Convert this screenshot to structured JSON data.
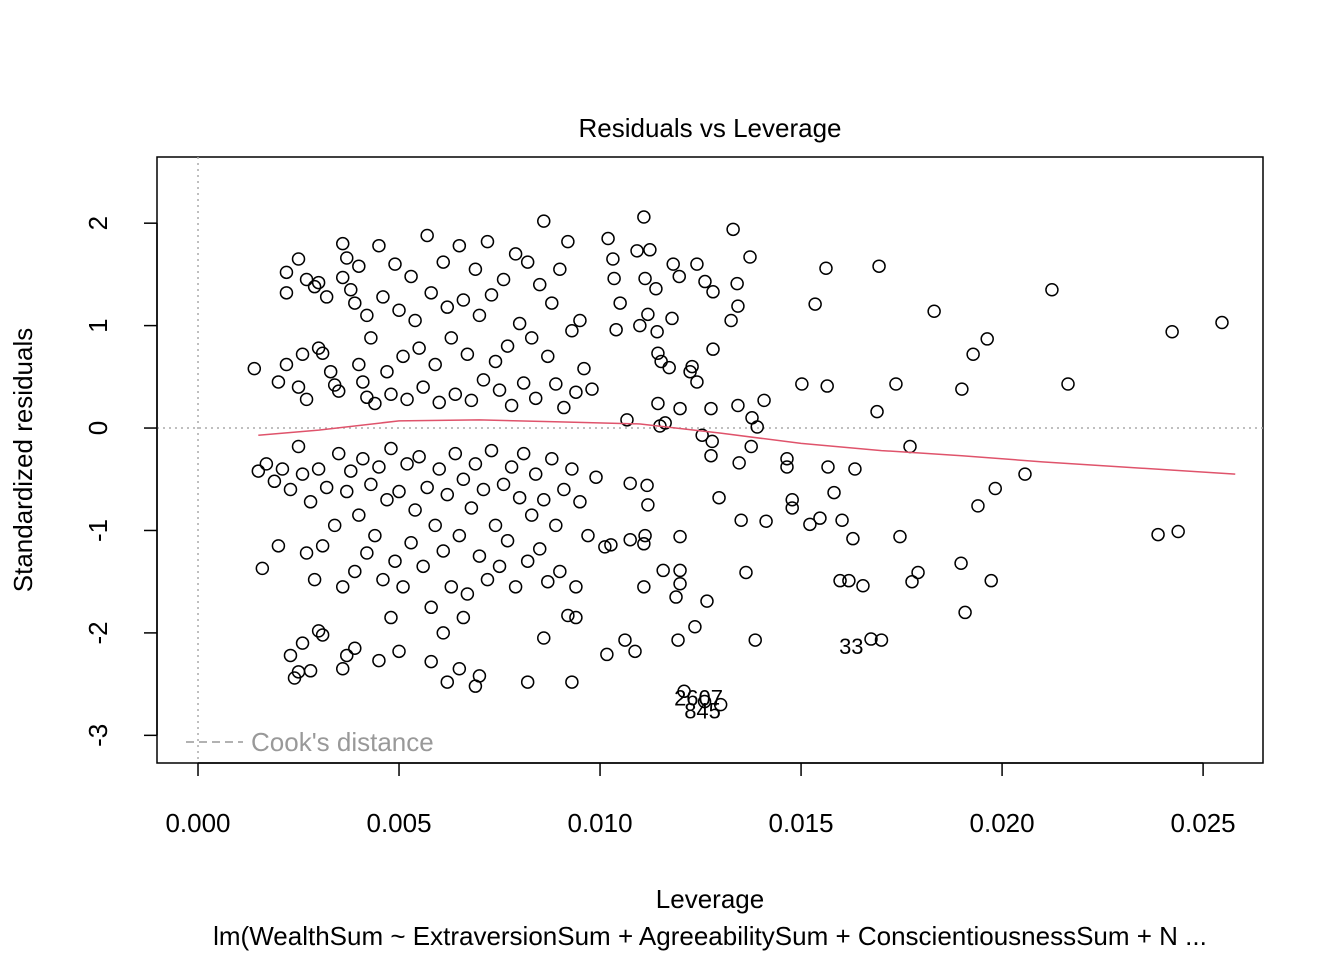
{
  "chart_data": {
    "type": "scatter",
    "title": "Residuals vs Leverage",
    "x_label": "Leverage",
    "y_label": "Standardized residuals",
    "subtitle": "lm(WealthSum ~ ExtraversionSum + AgreeabilitySum + ConscientiousnessSum + N ...",
    "xlim": [
      -0.00102,
      0.02649
    ],
    "ylim": [
      -3.27,
      2.646
    ],
    "xticks": [
      {
        "value": 0,
        "label": "0.000"
      },
      {
        "value": 0.005,
        "label": "0.005"
      },
      {
        "value": 0.01,
        "label": "0.010"
      },
      {
        "value": 0.015,
        "label": "0.015"
      },
      {
        "value": 0.02,
        "label": "0.020"
      },
      {
        "value": 0.025,
        "label": "0.025"
      }
    ],
    "yticks": [
      -3,
      -2,
      -1,
      0,
      1,
      2
    ],
    "point_color": "#000000",
    "points": [
      [
        0.02547,
        1.03
      ],
      [
        0.02423,
        0.94
      ],
      [
        0.02388,
        -1.04
      ],
      [
        0.02438,
        -1.01
      ],
      [
        0.02124,
        1.35
      ],
      [
        0.02164,
        0.43
      ],
      [
        0.02057,
        -0.45
      ],
      [
        0.01983,
        -0.59
      ],
      [
        0.01973,
        -1.49
      ],
      [
        0.01963,
        0.87
      ],
      [
        0.01928,
        0.72
      ],
      [
        0.019,
        0.38
      ],
      [
        0.01898,
        -1.32
      ],
      [
        0.01908,
        -1.8
      ],
      [
        0.0194,
        -0.76
      ],
      [
        0.01831,
        1.14
      ],
      [
        0.01791,
        -1.41
      ],
      [
        0.01776,
        -1.5
      ],
      [
        0.01771,
        -0.18
      ],
      [
        0.01746,
        -1.06
      ],
      [
        0.01736,
        0.43
      ],
      [
        0.01694,
        1.58
      ],
      [
        0.01689,
        0.16
      ],
      [
        0.01674,
        -2.06
      ],
      [
        0.01634,
        -0.4
      ],
      [
        0.01629,
        -1.08
      ],
      [
        0.01654,
        -1.54
      ],
      [
        0.01619,
        -1.49
      ],
      [
        0.01597,
        -1.49
      ],
      [
        0.01602,
        -0.9
      ],
      [
        0.01582,
        -0.63
      ],
      [
        0.01562,
        1.56
      ],
      [
        0.01565,
        0.41
      ],
      [
        0.01567,
        -0.38
      ],
      [
        0.01535,
        1.21
      ],
      [
        0.01547,
        -0.88
      ],
      [
        0.01522,
        -0.94
      ],
      [
        0.01502,
        0.43
      ],
      [
        0.01478,
        -0.7
      ],
      [
        0.01478,
        -0.78
      ],
      [
        0.01465,
        -0.3
      ],
      [
        0.01465,
        -0.38
      ],
      [
        0.01413,
        -0.91
      ],
      [
        0.01408,
        0.27
      ],
      [
        0.01386,
        -2.07
      ],
      [
        0.01373,
        1.67
      ],
      [
        0.01363,
        -1.41
      ],
      [
        0.01351,
        -0.9
      ],
      [
        0.01343,
        0.22
      ],
      [
        0.01343,
        1.19
      ],
      [
        0.01341,
        1.41
      ],
      [
        0.01331,
        1.94
      ],
      [
        0.01326,
        1.05
      ],
      [
        0.01346,
        -0.34
      ],
      [
        0.01378,
        0.1
      ],
      [
        0.01391,
        0.01
      ],
      [
        0.01376,
        -0.18
      ],
      [
        0.01281,
        1.33
      ],
      [
        0.01281,
        0.77
      ],
      [
        0.01276,
        0.19
      ],
      [
        0.01279,
        -0.13
      ],
      [
        0.01276,
        -0.27
      ],
      [
        0.01261,
        1.43
      ],
      [
        0.01254,
        -0.07
      ],
      [
        0.01266,
        -1.69
      ],
      [
        0.01296,
        -0.68
      ],
      [
        0.01241,
        0.45
      ],
      [
        0.01229,
        0.6
      ],
      [
        0.01224,
        0.55
      ],
      [
        0.01236,
        -1.94
      ],
      [
        0.01241,
        1.6
      ],
      [
        0.01182,
        1.6
      ],
      [
        0.01209,
        -2.57
      ],
      [
        0.01199,
        -1.06
      ],
      [
        0.01199,
        -1.39
      ],
      [
        0.01199,
        0.19
      ],
      [
        0.01189,
        -1.65
      ],
      [
        0.01199,
        -1.52
      ],
      [
        0.01197,
        1.48
      ],
      [
        0.01194,
        -2.07
      ],
      [
        0.01179,
        1.07
      ],
      [
        0.01172,
        0.59
      ],
      [
        0.01162,
        0.05
      ],
      [
        0.01149,
        0.02
      ],
      [
        0.01152,
        0.65
      ],
      [
        0.01144,
        0.73
      ],
      [
        0.01144,
        0.24
      ],
      [
        0.01142,
        0.94
      ],
      [
        0.01139,
        1.36
      ],
      [
        0.01124,
        1.74
      ],
      [
        0.01109,
        2.06
      ],
      [
        0.01112,
        1.46
      ],
      [
        0.01092,
        1.73
      ],
      [
        0.01119,
        1.11
      ],
      [
        0.01117,
        -0.56
      ],
      [
        0.01119,
        -0.75
      ],
      [
        0.01112,
        -1.05
      ],
      [
        0.01109,
        -1.13
      ],
      [
        0.01109,
        -1.55
      ],
      [
        0.01157,
        -1.39
      ],
      [
        0.01099,
        1.0
      ],
      [
        0.01087,
        -2.18
      ],
      [
        0.01075,
        -0.54
      ],
      [
        0.01075,
        -1.09
      ],
      [
        0.01067,
        0.08
      ],
      [
        0.01062,
        -2.07
      ],
      [
        0.0105,
        1.22
      ],
      [
        0.0104,
        0.96
      ],
      [
        0.01035,
        1.46
      ],
      [
        0.01032,
        1.65
      ],
      [
        0.0102,
        1.85
      ],
      [
        0.01012,
        -1.16
      ],
      [
        0.01017,
        -2.21
      ],
      [
        0.01027,
        -1.14
      ],
      [
        0.0014,
        0.58
      ],
      [
        0.002,
        0.45
      ],
      [
        0.0022,
        0.62
      ],
      [
        0.0025,
        0.4
      ],
      [
        0.0026,
        0.72
      ],
      [
        0.0027,
        0.28
      ],
      [
        0.0022,
        1.52
      ],
      [
        0.0022,
        1.32
      ],
      [
        0.0025,
        1.65
      ],
      [
        0.0027,
        1.45
      ],
      [
        0.0029,
        1.38
      ],
      [
        0.003,
        1.42
      ],
      [
        0.0032,
        1.28
      ],
      [
        0.003,
        0.78
      ],
      [
        0.0031,
        0.73
      ],
      [
        0.0033,
        0.55
      ],
      [
        0.0034,
        0.42
      ],
      [
        0.0035,
        0.36
      ],
      [
        0.0036,
        1.47
      ],
      [
        0.0036,
        1.8
      ],
      [
        0.0037,
        1.66
      ],
      [
        0.0038,
        1.35
      ],
      [
        0.0039,
        1.22
      ],
      [
        0.004,
        0.62
      ],
      [
        0.0041,
        0.45
      ],
      [
        0.0042,
        0.3
      ],
      [
        0.004,
        1.58
      ],
      [
        0.0042,
        1.1
      ],
      [
        0.0043,
        0.88
      ],
      [
        0.0044,
        0.24
      ],
      [
        0.0045,
        1.78
      ],
      [
        0.0046,
        1.28
      ],
      [
        0.0047,
        0.55
      ],
      [
        0.0048,
        0.33
      ],
      [
        0.0049,
        1.6
      ],
      [
        0.005,
        1.15
      ],
      [
        0.0051,
        0.7
      ],
      [
        0.0052,
        0.28
      ],
      [
        0.0053,
        1.48
      ],
      [
        0.0054,
        1.05
      ],
      [
        0.0055,
        0.78
      ],
      [
        0.0056,
        0.4
      ],
      [
        0.0057,
        1.88
      ],
      [
        0.0058,
        1.32
      ],
      [
        0.0059,
        0.62
      ],
      [
        0.006,
        0.25
      ],
      [
        0.0061,
        1.62
      ],
      [
        0.0062,
        1.18
      ],
      [
        0.0063,
        0.88
      ],
      [
        0.0064,
        0.33
      ],
      [
        0.0065,
        1.78
      ],
      [
        0.0066,
        1.25
      ],
      [
        0.0067,
        0.72
      ],
      [
        0.0068,
        0.27
      ],
      [
        0.0069,
        1.55
      ],
      [
        0.007,
        1.1
      ],
      [
        0.0071,
        0.47
      ],
      [
        0.0072,
        1.82
      ],
      [
        0.0073,
        1.3
      ],
      [
        0.0074,
        0.65
      ],
      [
        0.0075,
        0.37
      ],
      [
        0.0076,
        1.45
      ],
      [
        0.0077,
        0.8
      ],
      [
        0.0078,
        0.22
      ],
      [
        0.0079,
        1.7
      ],
      [
        0.008,
        1.02
      ],
      [
        0.0081,
        0.44
      ],
      [
        0.0082,
        1.62
      ],
      [
        0.0083,
        0.88
      ],
      [
        0.0084,
        0.29
      ],
      [
        0.0085,
        1.4
      ],
      [
        0.0086,
        2.02
      ],
      [
        0.0087,
        0.7
      ],
      [
        0.0088,
        1.22
      ],
      [
        0.0089,
        0.43
      ],
      [
        0.009,
        1.55
      ],
      [
        0.0091,
        0.2
      ],
      [
        0.0092,
        1.82
      ],
      [
        0.0093,
        0.95
      ],
      [
        0.0094,
        0.35
      ],
      [
        0.0095,
        1.05
      ],
      [
        0.0096,
        0.58
      ],
      [
        0.0098,
        0.38
      ],
      [
        0.0015,
        -0.42
      ],
      [
        0.0017,
        -0.35
      ],
      [
        0.0019,
        -0.52
      ],
      [
        0.0021,
        -0.4
      ],
      [
        0.0023,
        -0.6
      ],
      [
        0.0025,
        -0.18
      ],
      [
        0.0026,
        -0.45
      ],
      [
        0.0027,
        -1.22
      ],
      [
        0.0028,
        -0.72
      ],
      [
        0.0029,
        -1.48
      ],
      [
        0.003,
        -0.4
      ],
      [
        0.0031,
        -1.15
      ],
      [
        0.0032,
        -0.58
      ],
      [
        0.0034,
        -0.95
      ],
      [
        0.0035,
        -0.25
      ],
      [
        0.0036,
        -1.55
      ],
      [
        0.0037,
        -0.62
      ],
      [
        0.0038,
        -0.42
      ],
      [
        0.0039,
        -1.4
      ],
      [
        0.004,
        -0.85
      ],
      [
        0.0041,
        -0.3
      ],
      [
        0.0042,
        -1.22
      ],
      [
        0.0043,
        -0.55
      ],
      [
        0.0044,
        -1.05
      ],
      [
        0.0045,
        -0.38
      ],
      [
        0.0046,
        -1.48
      ],
      [
        0.0047,
        -0.7
      ],
      [
        0.0048,
        -0.2
      ],
      [
        0.0049,
        -1.3
      ],
      [
        0.005,
        -0.62
      ],
      [
        0.0051,
        -1.55
      ],
      [
        0.0052,
        -0.35
      ],
      [
        0.0053,
        -1.12
      ],
      [
        0.0054,
        -0.8
      ],
      [
        0.0055,
        -0.28
      ],
      [
        0.0056,
        -1.35
      ],
      [
        0.0057,
        -0.58
      ],
      [
        0.0058,
        -1.75
      ],
      [
        0.0059,
        -0.95
      ],
      [
        0.006,
        -0.4
      ],
      [
        0.0061,
        -1.2
      ],
      [
        0.0062,
        -0.65
      ],
      [
        0.0063,
        -1.55
      ],
      [
        0.0064,
        -0.25
      ],
      [
        0.0065,
        -1.05
      ],
      [
        0.0066,
        -0.5
      ],
      [
        0.0067,
        -1.62
      ],
      [
        0.0068,
        -0.78
      ],
      [
        0.0069,
        -0.35
      ],
      [
        0.007,
        -1.25
      ],
      [
        0.0071,
        -0.6
      ],
      [
        0.0072,
        -1.48
      ],
      [
        0.0073,
        -0.22
      ],
      [
        0.0074,
        -0.95
      ],
      [
        0.0075,
        -1.35
      ],
      [
        0.0076,
        -0.55
      ],
      [
        0.0077,
        -1.1
      ],
      [
        0.0078,
        -0.38
      ],
      [
        0.0079,
        -1.55
      ],
      [
        0.008,
        -0.68
      ],
      [
        0.0081,
        -0.25
      ],
      [
        0.0082,
        -1.3
      ],
      [
        0.0083,
        -0.85
      ],
      [
        0.0084,
        -0.45
      ],
      [
        0.0085,
        -1.18
      ],
      [
        0.0086,
        -0.7
      ],
      [
        0.0087,
        -1.5
      ],
      [
        0.0088,
        -0.3
      ],
      [
        0.0089,
        -0.95
      ],
      [
        0.009,
        -1.4
      ],
      [
        0.0091,
        -0.6
      ],
      [
        0.0092,
        -1.83
      ],
      [
        0.0093,
        -0.4
      ],
      [
        0.0094,
        -1.55
      ],
      [
        0.0095,
        -0.72
      ],
      [
        0.0097,
        -1.05
      ],
      [
        0.0099,
        -0.48
      ],
      [
        0.0016,
        -1.37
      ],
      [
        0.002,
        -1.15
      ],
      [
        0.0023,
        -2.22
      ],
      [
        0.0024,
        -2.44
      ],
      [
        0.0025,
        -2.38
      ],
      [
        0.0026,
        -2.1
      ],
      [
        0.0028,
        -2.37
      ],
      [
        0.003,
        -1.98
      ],
      [
        0.0031,
        -2.02
      ],
      [
        0.0036,
        -2.35
      ],
      [
        0.0037,
        -2.22
      ],
      [
        0.0039,
        -2.15
      ],
      [
        0.0045,
        -2.27
      ],
      [
        0.0048,
        -1.85
      ],
      [
        0.005,
        -2.18
      ],
      [
        0.0058,
        -2.28
      ],
      [
        0.0061,
        -2.0
      ],
      [
        0.0062,
        -2.48
      ],
      [
        0.0065,
        -2.35
      ],
      [
        0.0066,
        -1.85
      ],
      [
        0.0069,
        -2.52
      ],
      [
        0.007,
        -2.42
      ],
      [
        0.0082,
        -2.48
      ],
      [
        0.0086,
        -2.05
      ],
      [
        0.0093,
        -2.48
      ],
      [
        0.0094,
        -1.85
      ],
      [
        0.0126,
        -2.67
      ],
      [
        0.013,
        -2.7
      ],
      [
        0.017,
        -2.07
      ]
    ],
    "annotations": [
      {
        "text": "33",
        "x": 0.01625,
        "y": -2.15
      },
      {
        "text": "2607",
        "x": 0.01245,
        "y": -2.65
      },
      {
        "text": "845",
        "x": 0.01255,
        "y": -2.78
      }
    ],
    "smooth": {
      "color": "#DF536B",
      "x": [
        0.0015,
        0.003,
        0.005,
        0.007,
        0.009,
        0.011,
        0.013,
        0.015,
        0.017,
        0.019,
        0.021,
        0.023,
        0.0258
      ],
      "values": [
        -0.07,
        -0.02,
        0.07,
        0.08,
        0.06,
        0.04,
        -0.05,
        -0.15,
        -0.22,
        -0.27,
        -0.33,
        -0.38,
        -0.45
      ]
    },
    "legend": {
      "text": "Cook's distance",
      "color": "#999999",
      "corner": "bottom-left"
    }
  }
}
